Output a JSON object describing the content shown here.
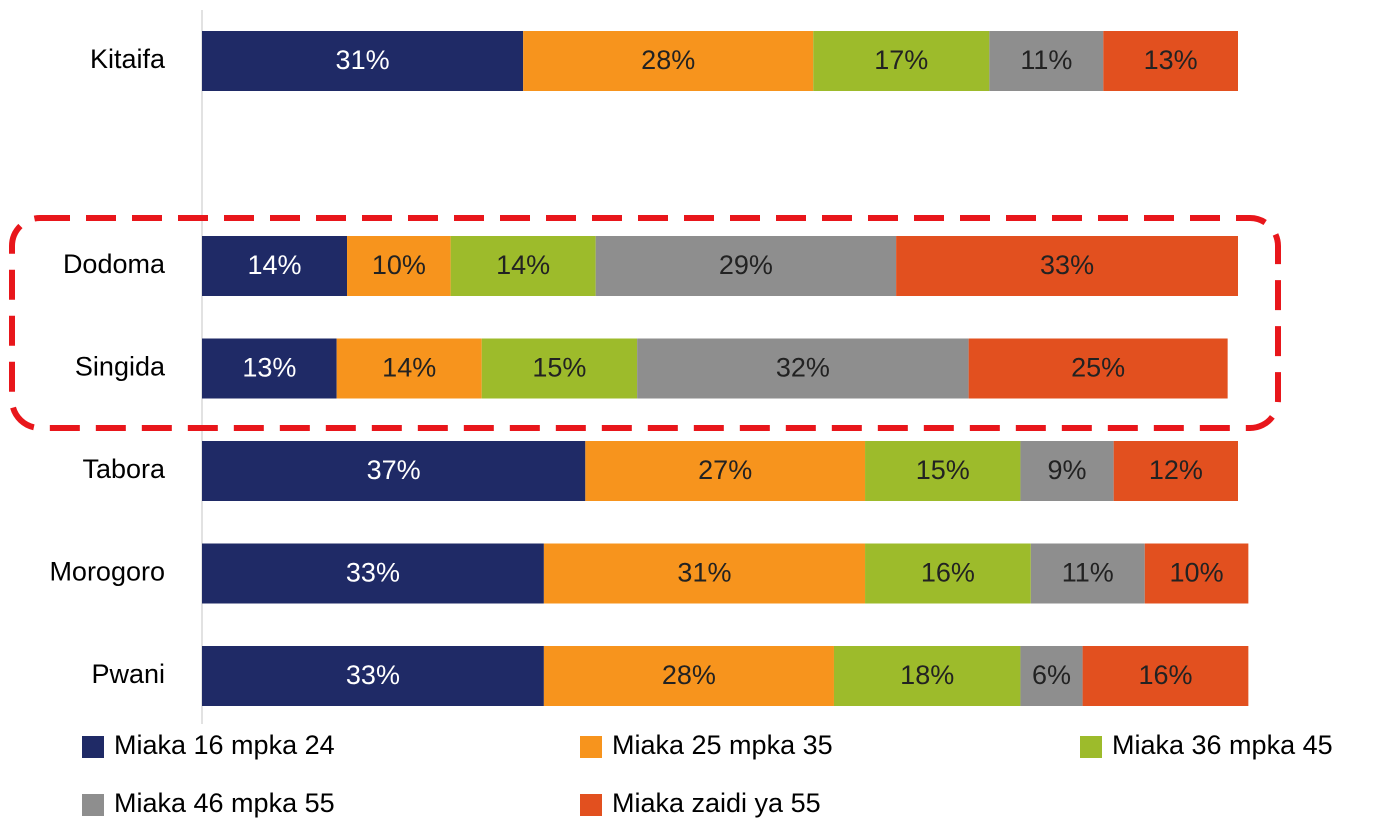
{
  "chart_data": {
    "type": "stacked-bar-horizontal",
    "categories": [
      "Kitaifa",
      null,
      "Dodoma",
      "Singida",
      "Tabora",
      "Morogoro",
      "Pwani"
    ],
    "series": [
      {
        "name": "Miaka 16 mpka 24",
        "color": "#1f2a66",
        "values": [
          31,
          null,
          14,
          13,
          37,
          33,
          33
        ],
        "value_labels": [
          "31%",
          null,
          "14%",
          "13%",
          "37%",
          "33%",
          "33%"
        ]
      },
      {
        "name": "Miaka 25 mpka 35",
        "color": "#f7941d",
        "values": [
          28,
          null,
          10,
          14,
          27,
          31,
          28
        ],
        "value_labels": [
          "28%",
          null,
          "10%",
          "14%",
          "27%",
          "31%",
          "28%"
        ]
      },
      {
        "name": "Miaka 36 mpka 45",
        "color": "#9dbb2b",
        "values": [
          17,
          null,
          14,
          15,
          15,
          16,
          18
        ],
        "value_labels": [
          "17%",
          null,
          "14%",
          "15%",
          "15%",
          "16%",
          "18%"
        ]
      },
      {
        "name": "Miaka 46 mpka 55",
        "color": "#8e8e8e",
        "values": [
          11,
          null,
          29,
          32,
          9,
          11,
          6
        ],
        "value_labels": [
          "11%",
          null,
          "29%",
          "32%",
          "9%",
          "11%",
          "6%"
        ]
      },
      {
        "name": "Miaka zaidi ya 55",
        "color": "#e2501f",
        "values": [
          13,
          null,
          33,
          25,
          12,
          10,
          16
        ],
        "value_labels": [
          "13%",
          null,
          "33%",
          "25%",
          "12%",
          "10%",
          "16%"
        ]
      }
    ]
  }
}
